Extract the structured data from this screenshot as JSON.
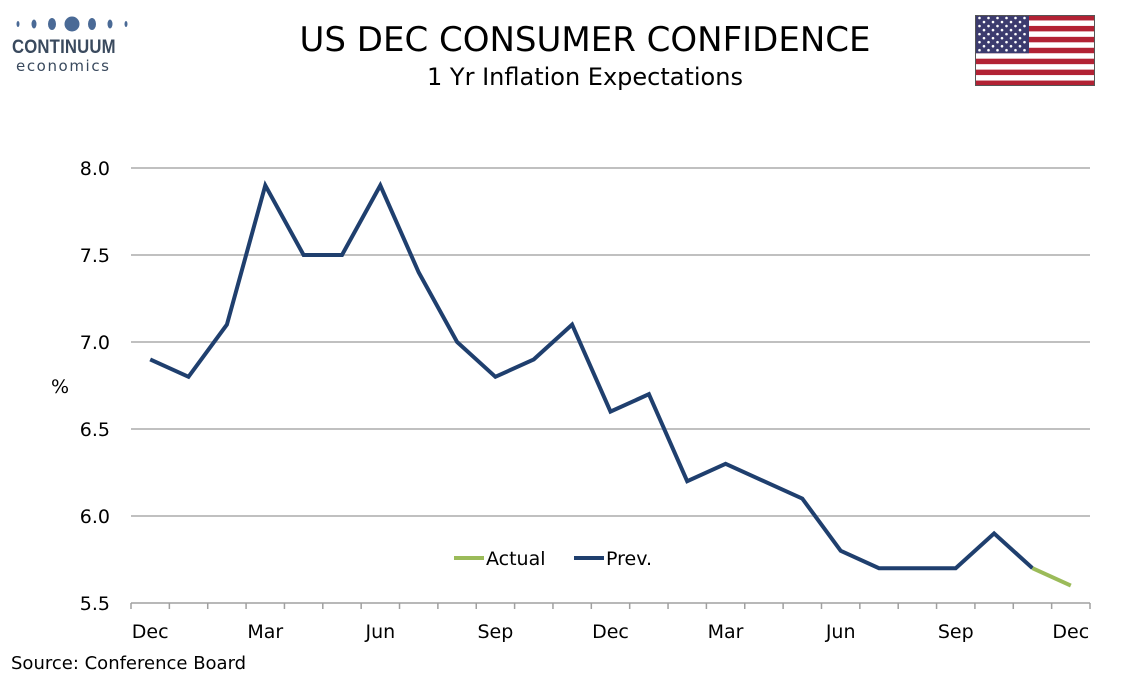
{
  "logo": {
    "name": "CONTINUUM",
    "sub": "economics"
  },
  "header": {
    "title": "US DEC CONSUMER CONFIDENCE",
    "subtitle": "1 Yr Inflation Expectations"
  },
  "flag": {
    "name": "us-flag",
    "colors": {
      "red": "#B22234",
      "blue": "#3C3B6E",
      "white": "#FFFFFF"
    }
  },
  "source": "Source: Conference Board",
  "chart_data": {
    "type": "line",
    "title": "US DEC CONSUMER CONFIDENCE",
    "subtitle": "1 Yr Inflation Expectations",
    "ylabel": "%",
    "xlabel": "",
    "ylim": [
      5.5,
      8.0
    ],
    "yticks": [
      "8.0",
      "7.5",
      "7.0",
      "6.5",
      "6.0",
      "5.5"
    ],
    "x_tick_labels": [
      {
        "index": 0,
        "label": "Dec"
      },
      {
        "index": 3,
        "label": "Mar"
      },
      {
        "index": 6,
        "label": "Jun"
      },
      {
        "index": 9,
        "label": "Sep"
      },
      {
        "index": 12,
        "label": "Dec"
      },
      {
        "index": 15,
        "label": "Mar"
      },
      {
        "index": 18,
        "label": "Jun"
      },
      {
        "index": 21,
        "label": "Sep"
      },
      {
        "index": 24,
        "label": "Dec"
      }
    ],
    "num_points": 25,
    "grid": true,
    "legend": "bottom-center",
    "series": [
      {
        "name": "Prev.",
        "color": "#1f3f6e",
        "start_index": 0,
        "values": [
          6.9,
          6.8,
          7.1,
          7.9,
          7.5,
          7.5,
          7.9,
          7.4,
          7.0,
          6.8,
          6.9,
          7.1,
          6.6,
          6.7,
          6.2,
          6.3,
          6.2,
          6.1,
          5.8,
          5.7,
          5.7,
          5.7,
          5.9,
          5.7
        ]
      },
      {
        "name": "Actual",
        "color": "#9bbb59",
        "start_index": 23,
        "values": [
          5.7,
          5.6
        ]
      }
    ]
  }
}
